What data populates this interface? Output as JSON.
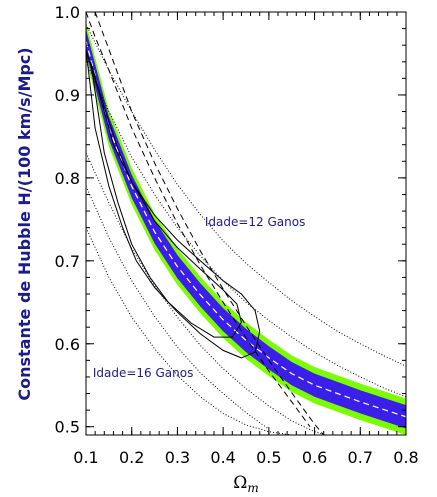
{
  "chart_data": {
    "type": "line",
    "title": "",
    "ylabel": "Constante de Hubble H/(100 km/s/Mpc)",
    "xlabel_base": "Ω",
    "xlabel_sub": "m",
    "xlim": [
      0.1,
      0.8
    ],
    "ylim": [
      0.49,
      1.0
    ],
    "x_ticks": [
      "0.1",
      "0.2",
      "0.3",
      "0.4",
      "0.5",
      "0.6",
      "0.7",
      "0.8"
    ],
    "y_ticks": [
      "0.5",
      "0.6",
      "0.7",
      "0.8",
      "0.9",
      "1.0"
    ],
    "grid": false,
    "annotations": [
      {
        "text": "Idade=12 Ganos",
        "x": 0.36,
        "y": 0.742
      },
      {
        "text": "Idade=16 Ganos",
        "x": 0.115,
        "y": 0.56
      }
    ],
    "band": {
      "outer_color": "#7cfc00",
      "inner_color": "#3a1fe8",
      "outer_halfwidth": 0.022,
      "inner_halfwidth": 0.014,
      "center": {
        "x": [
          0.1,
          0.15,
          0.2,
          0.25,
          0.3,
          0.35,
          0.4,
          0.45,
          0.5,
          0.55,
          0.6,
          0.65,
          0.7,
          0.75,
          0.8
        ],
        "y": [
          0.965,
          0.86,
          0.79,
          0.735,
          0.693,
          0.659,
          0.629,
          0.604,
          0.583,
          0.564,
          0.55,
          0.54,
          0.53,
          0.521,
          0.512
        ]
      }
    },
    "dotted_lines": [
      {
        "x": [
          0.1,
          0.15,
          0.2,
          0.25,
          0.3,
          0.35,
          0.4,
          0.45,
          0.5,
          0.55,
          0.6,
          0.65,
          0.7,
          0.75,
          0.8
        ],
        "y": [
          0.985,
          0.93,
          0.88,
          0.834,
          0.792,
          0.756,
          0.724,
          0.697,
          0.674,
          0.652,
          0.633,
          0.615,
          0.6,
          0.586,
          0.573
        ]
      },
      {
        "x": [
          0.1,
          0.15,
          0.2,
          0.25,
          0.3,
          0.35,
          0.4,
          0.45,
          0.5,
          0.55,
          0.6,
          0.65,
          0.7,
          0.75,
          0.8
        ],
        "y": [
          0.94,
          0.88,
          0.825,
          0.78,
          0.74,
          0.706,
          0.676,
          0.65,
          0.628,
          0.608,
          0.59,
          0.574,
          0.56,
          0.547,
          0.536
        ]
      },
      {
        "x": [
          0.1,
          0.15,
          0.2,
          0.25,
          0.3,
          0.35,
          0.4,
          0.45,
          0.5,
          0.55,
          0.6,
          0.65
        ],
        "y": [
          0.83,
          0.77,
          0.715,
          0.67,
          0.632,
          0.598,
          0.57,
          0.546,
          0.525,
          0.507,
          0.494,
          0.486
        ]
      },
      {
        "x": [
          0.1,
          0.15,
          0.2,
          0.25,
          0.3,
          0.35,
          0.4,
          0.45,
          0.5
        ],
        "y": [
          0.79,
          0.728,
          0.676,
          0.633,
          0.596,
          0.565,
          0.54,
          0.517,
          0.497
        ]
      },
      {
        "x": [
          0.1,
          0.15,
          0.2,
          0.25,
          0.3,
          0.35,
          0.4,
          0.45,
          0.5,
          0.55,
          0.6
        ],
        "y": [
          0.74,
          0.68,
          0.632,
          0.594,
          0.562,
          0.536,
          0.516,
          0.502,
          0.494,
          0.49,
          0.488
        ]
      }
    ],
    "dashed_lines": [
      {
        "x": [
          0.1,
          0.12,
          0.15,
          0.2,
          0.25,
          0.3,
          0.35,
          0.4,
          0.45,
          0.5,
          0.55,
          0.59
        ],
        "y": [
          1.0,
          0.97,
          0.93,
          0.86,
          0.8,
          0.745,
          0.695,
          0.65,
          0.607,
          0.567,
          0.53,
          0.5
        ]
      },
      {
        "x": [
          0.12,
          0.15,
          0.2,
          0.25,
          0.3,
          0.35,
          0.4,
          0.45,
          0.5,
          0.55,
          0.6,
          0.62
        ],
        "y": [
          1.0,
          0.955,
          0.88,
          0.818,
          0.763,
          0.712,
          0.666,
          0.622,
          0.58,
          0.541,
          0.503,
          0.49
        ]
      }
    ],
    "contours": [
      {
        "x": [
          0.1,
          0.13,
          0.16,
          0.2,
          0.25,
          0.3,
          0.35,
          0.4,
          0.44,
          0.47,
          0.48,
          0.47,
          0.44,
          0.4,
          0.35,
          0.3,
          0.25,
          0.21,
          0.18,
          0.15,
          0.12,
          0.1
        ],
        "y": [
          0.955,
          0.9,
          0.84,
          0.795,
          0.755,
          0.725,
          0.7,
          0.676,
          0.66,
          0.64,
          0.615,
          0.59,
          0.583,
          0.592,
          0.612,
          0.638,
          0.668,
          0.7,
          0.74,
          0.79,
          0.86,
          0.955
        ]
      },
      {
        "x": [
          0.11,
          0.14,
          0.17,
          0.2,
          0.25,
          0.3,
          0.35,
          0.4,
          0.43,
          0.44,
          0.42,
          0.38,
          0.33,
          0.28,
          0.24,
          0.2,
          0.17,
          0.14,
          0.11
        ],
        "y": [
          0.94,
          0.885,
          0.835,
          0.795,
          0.748,
          0.716,
          0.69,
          0.665,
          0.648,
          0.626,
          0.608,
          0.608,
          0.625,
          0.65,
          0.68,
          0.72,
          0.77,
          0.83,
          0.94
        ]
      }
    ]
  }
}
